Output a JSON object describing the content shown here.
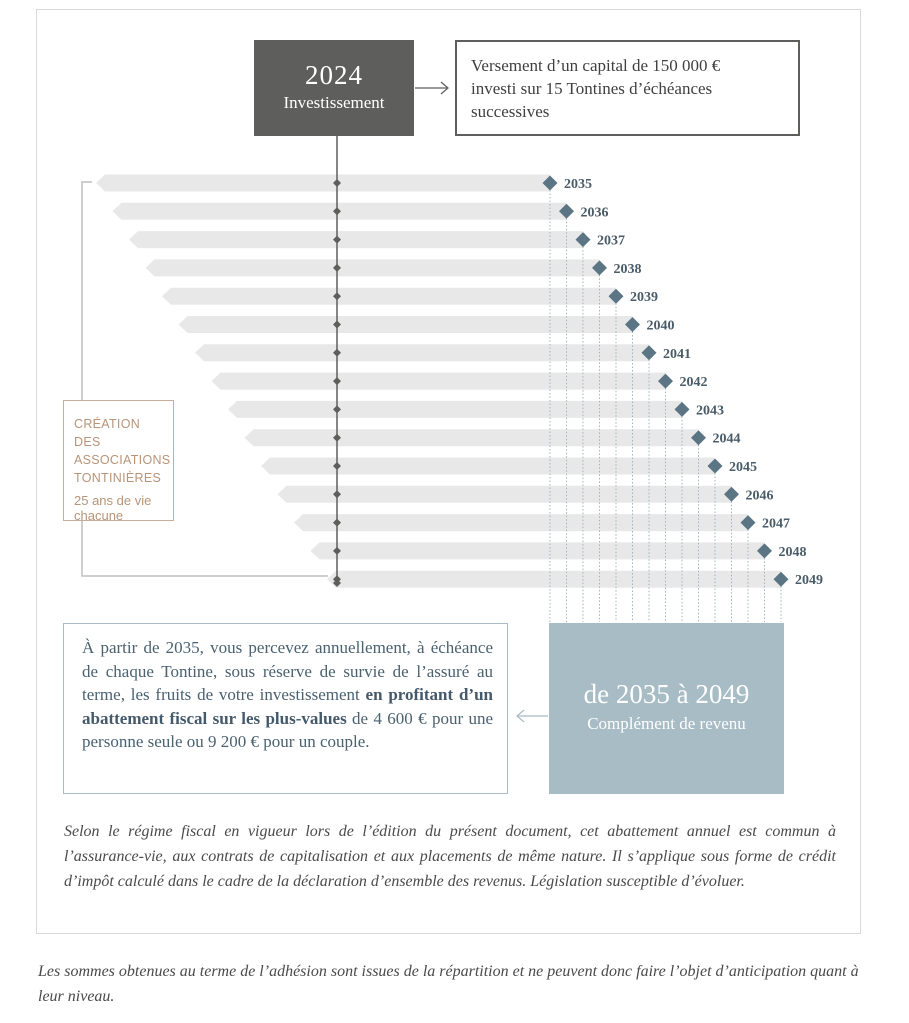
{
  "investment": {
    "year": "2024",
    "label": "Investissement"
  },
  "info_box": {
    "line1": "Versement d’un capital de 150 000 €",
    "line2": "investi sur 15 Tontines d’échéances",
    "line3": "successives"
  },
  "timeline": {
    "maturity_years": [
      "2035",
      "2036",
      "2037",
      "2038",
      "2039",
      "2040",
      "2041",
      "2042",
      "2043",
      "2044",
      "2045",
      "2046",
      "2047",
      "2048",
      "2049"
    ],
    "bar_color": "#e8e8e8",
    "diamond_color": "#5b7585",
    "axis_color": "#5e5f5d"
  },
  "creation_box": {
    "title_line1": "CRÉATION DES",
    "title_line2": "ASSOCIATIONS",
    "title_line3": "TONTINIÈRES",
    "sub_line1": "25 ans de vie",
    "sub_line2": "chacune"
  },
  "income_text": {
    "part1": "À partir de 2035, vous percevez annuellement, à échéance de chaque Tontine, sous réserve de survie de l’assuré au terme, les fruits de votre investissement ",
    "bold": "en profitant d’un abattement fiscal sur les plus-values",
    "part2": " de 4 600 € pour une personne seule ou 9 200 € pour un couple."
  },
  "range_box": {
    "title": "de 2035 à 2049",
    "subtitle": "Complément de revenu"
  },
  "footnote": "Selon le régime fiscal en vigueur lors de l’édition du présent document, cet abattement annuel est commun à l’assurance-vie, aux contrats de capitalisation et aux placements de même nature. Il s’applique sous forme de crédit d’impôt calculé dans le cadre de la déclaration d’ensemble des revenus. Législation susceptible d’évoluer.",
  "disclaimer": "Les sommes obtenues au terme de l’adhésion sont issues de la répartition et ne peuvent donc faire l’objet d’anticipation quant à leur niveau.",
  "colors": {
    "dark_box": "#5e5f5d",
    "blue_box": "#a8bcc6",
    "creation_accent": "#b79478",
    "text_blue": "#4a6170"
  }
}
